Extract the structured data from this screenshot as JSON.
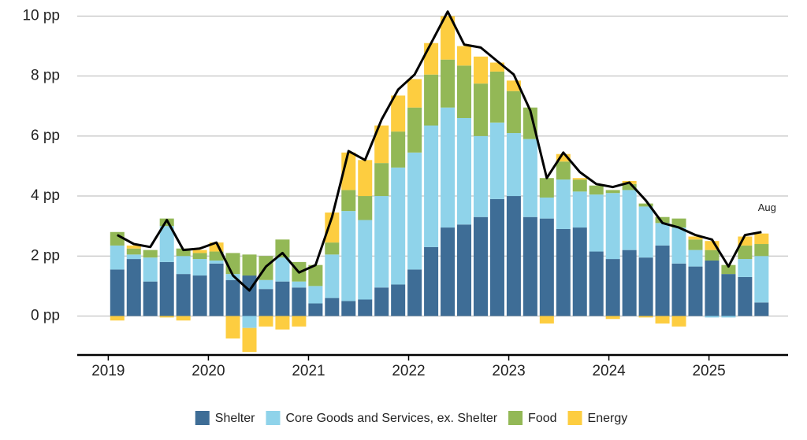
{
  "chart_data": {
    "type": "stacked-bar-line",
    "x": [
      2019.09,
      2019.255,
      2019.42,
      2019.585,
      2019.75,
      2019.915,
      2020.08,
      2020.245,
      2020.41,
      2020.575,
      2020.74,
      2020.905,
      2021.07,
      2021.235,
      2021.4,
      2021.565,
      2021.73,
      2021.895,
      2022.06,
      2022.225,
      2022.39,
      2022.555,
      2022.72,
      2022.885,
      2023.05,
      2023.215,
      2023.38,
      2023.545,
      2023.71,
      2023.875,
      2024.04,
      2024.205,
      2024.37,
      2024.535,
      2024.7,
      2024.865,
      2025.03,
      2025.195,
      2025.36,
      2025.525
    ],
    "series": [
      {
        "name": "Shelter",
        "color": "#3e6d96",
        "values": [
          1.55,
          1.9,
          1.15,
          1.8,
          1.4,
          1.35,
          1.75,
          1.2,
          1.35,
          0.9,
          1.15,
          0.95,
          0.42,
          0.6,
          0.5,
          0.55,
          0.95,
          1.05,
          1.55,
          2.3,
          2.95,
          3.05,
          3.3,
          3.9,
          4.0,
          3.3,
          3.25,
          2.9,
          2.95,
          2.15,
          1.9,
          2.2,
          1.95,
          2.35,
          1.75,
          1.65,
          1.85,
          1.4,
          1.3,
          0.45
        ]
      },
      {
        "name": "Core Goods and Services, ex. Shelter",
        "color": "#8fd3ea",
        "values": [
          0.8,
          0.15,
          0.8,
          1.2,
          0.6,
          0.55,
          0.1,
          0.2,
          -0.4,
          0.3,
          0.8,
          0.2,
          0.58,
          1.45,
          3.0,
          2.65,
          3.05,
          3.9,
          3.9,
          4.05,
          4.0,
          3.55,
          2.7,
          2.55,
          2.1,
          2.6,
          0.7,
          1.65,
          1.2,
          1.9,
          2.2,
          2.0,
          1.7,
          0.75,
          1.2,
          0.55,
          -0.05,
          -0.05,
          0.6,
          1.55
        ]
      },
      {
        "name": "Food",
        "color": "#93b856",
        "values": [
          0.45,
          0.2,
          0.25,
          0.25,
          0.25,
          0.2,
          0.3,
          0.7,
          0.7,
          0.8,
          0.6,
          0.65,
          0.7,
          0.4,
          0.7,
          0.8,
          1.1,
          1.2,
          1.5,
          1.7,
          1.6,
          1.75,
          1.75,
          1.7,
          1.4,
          1.05,
          0.65,
          0.6,
          0.4,
          0.3,
          0.1,
          0.2,
          0.1,
          0.2,
          0.3,
          0.35,
          0.35,
          0.3,
          0.45,
          0.4
        ]
      },
      {
        "name": "Energy",
        "color": "#fdcd40",
        "values": [
          -0.15,
          0.1,
          0,
          -0.05,
          -0.15,
          0.1,
          0.3,
          -0.75,
          -0.8,
          -0.35,
          -0.45,
          -0.35,
          0,
          1.0,
          1.25,
          1.2,
          1.25,
          1.2,
          0.95,
          1.05,
          1.45,
          0.65,
          0.9,
          0.3,
          0.35,
          0,
          -0.25,
          0.25,
          0.05,
          0,
          -0.1,
          0.1,
          -0.05,
          -0.25,
          -0.35,
          0.1,
          0.3,
          0,
          0.3,
          0.35
        ]
      }
    ],
    "total": {
      "color": "#000000",
      "values": [
        2.7,
        2.4,
        2.3,
        3.2,
        2.2,
        2.25,
        2.45,
        1.35,
        0.85,
        1.65,
        2.1,
        1.45,
        1.7,
        3.3,
        5.5,
        5.2,
        6.55,
        7.55,
        8.05,
        9.1,
        10.15,
        9.05,
        8.95,
        8.5,
        8.05,
        6.85,
        4.6,
        5.45,
        4.8,
        4.4,
        4.3,
        4.45,
        3.85,
        3.1,
        2.95,
        2.7,
        2.55,
        1.65,
        2.7,
        2.8
      ]
    },
    "annotation": "Aug",
    "xlim": [
      2018.69,
      2025.79
    ],
    "xticks": [
      2019,
      2020,
      2021,
      2022,
      2023,
      2024,
      2025
    ],
    "ylim": [
      -1.3,
      10.3
    ],
    "yticks": [
      {
        "value": 0,
        "label": "0 pp"
      },
      {
        "value": 2,
        "label": "2 pp"
      },
      {
        "value": 4,
        "label": "4 pp"
      },
      {
        "value": 6,
        "label": "6 pp"
      },
      {
        "value": 8,
        "label": "8 pp"
      },
      {
        "value": 10,
        "label": "10 pp"
      }
    ],
    "grid": true,
    "legend": "bottom"
  }
}
